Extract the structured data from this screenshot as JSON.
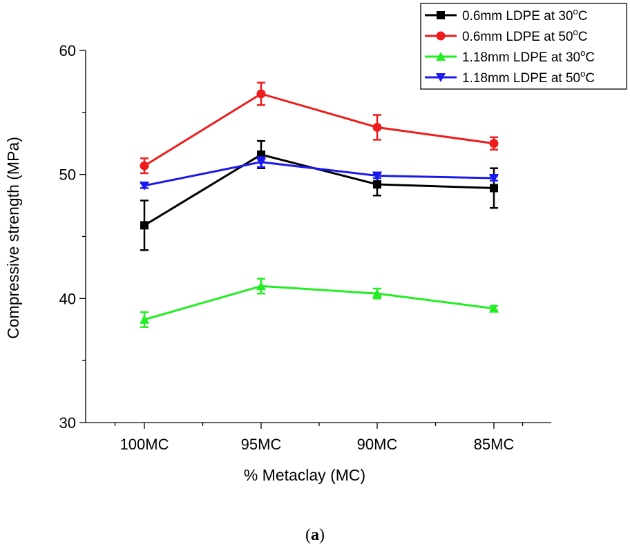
{
  "chart_data": {
    "type": "line",
    "title": "",
    "xlabel": "% Metaclay (MC)",
    "ylabel": "Compressive strength (MPa)",
    "categories": [
      "100MC",
      "95MC",
      "90MC",
      "85MC"
    ],
    "ylim": [
      30,
      60
    ],
    "yticks": [
      30,
      40,
      50,
      60
    ],
    "grid": false,
    "legend_position": "top-right",
    "series": [
      {
        "name_main": "0.6mm LDPE at 30",
        "name_sup": "o",
        "name_unit": "C",
        "color": "#000000",
        "marker": "square",
        "values": [
          45.9,
          51.6,
          49.2,
          48.9
        ],
        "errors": [
          2.0,
          1.1,
          0.9,
          1.6
        ]
      },
      {
        "name_main": "0.6mm LDPE at 50",
        "name_sup": "o",
        "name_unit": "C",
        "color": "#ee1c1c",
        "marker": "circle",
        "values": [
          50.7,
          56.5,
          53.8,
          52.5
        ],
        "errors": [
          0.6,
          0.9,
          1.0,
          0.5
        ]
      },
      {
        "name_main": "1.18mm LDPE at 30",
        "name_sup": "o",
        "name_unit": "C",
        "color": "#22ee22",
        "marker": "triangle-up",
        "values": [
          38.3,
          41.0,
          40.4,
          39.2
        ],
        "errors": [
          0.6,
          0.6,
          0.4,
          0.2
        ]
      },
      {
        "name_main": "1.18mm LDPE at 50",
        "name_sup": "o",
        "name_unit": "C",
        "color": "#1a1aee",
        "marker": "triangle-down",
        "values": [
          49.1,
          51.0,
          49.9,
          49.7
        ],
        "errors": [
          0.2,
          0.4,
          0.2,
          0.2
        ]
      }
    ]
  },
  "caption": {
    "open": "(",
    "label": "a",
    "close": ")"
  }
}
